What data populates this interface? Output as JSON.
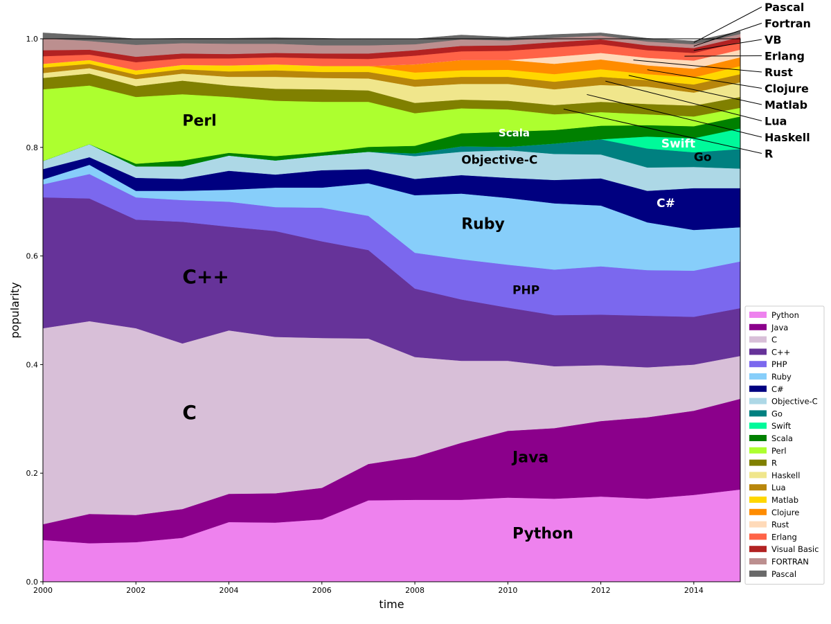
{
  "chart_data": {
    "type": "area",
    "stacked": true,
    "xlabel": "time",
    "ylabel": "popularity",
    "xlim": [
      2000,
      2015
    ],
    "ylim": [
      0,
      1.0
    ],
    "xticks": [
      "2000",
      "2002",
      "2004",
      "2006",
      "2008",
      "2010",
      "2012",
      "2014"
    ],
    "yticks": [
      "0.0",
      "0.2",
      "0.4",
      "0.6",
      "0.8",
      "1.0"
    ],
    "x": [
      2000,
      2001,
      2002,
      2003,
      2004,
      2005,
      2006,
      2007,
      2008,
      2009,
      2010,
      2011,
      2012,
      2013,
      2014,
      2015
    ],
    "legend_position": "lower-right",
    "series": [
      {
        "name": "Python",
        "color": "#ee82ee",
        "values": [
          0.077,
          0.071,
          0.073,
          0.081,
          0.11,
          0.109,
          0.115,
          0.15,
          0.151,
          0.151,
          0.155,
          0.153,
          0.157,
          0.153,
          0.16,
          0.17
        ]
      },
      {
        "name": "Java",
        "color": "#8b008b",
        "values": [
          0.029,
          0.054,
          0.05,
          0.053,
          0.052,
          0.054,
          0.058,
          0.067,
          0.079,
          0.105,
          0.123,
          0.13,
          0.139,
          0.15,
          0.155,
          0.167
        ]
      },
      {
        "name": "C",
        "color": "#d8bfd8",
        "values": [
          0.361,
          0.355,
          0.344,
          0.305,
          0.301,
          0.288,
          0.276,
          0.231,
          0.184,
          0.151,
          0.129,
          0.114,
          0.103,
          0.092,
          0.085,
          0.079
        ]
      },
      {
        "name": "C++",
        "color": "#663399",
        "values": [
          0.241,
          0.226,
          0.2,
          0.224,
          0.191,
          0.195,
          0.178,
          0.163,
          0.126,
          0.113,
          0.098,
          0.094,
          0.093,
          0.095,
          0.088,
          0.088
        ]
      },
      {
        "name": "PHP",
        "color": "#7b68ee",
        "values": [
          0.024,
          0.045,
          0.041,
          0.04,
          0.046,
          0.044,
          0.062,
          0.063,
          0.066,
          0.074,
          0.079,
          0.084,
          0.089,
          0.084,
          0.085,
          0.086
        ]
      },
      {
        "name": "Ruby",
        "color": "#87cefa",
        "values": [
          0.009,
          0.017,
          0.012,
          0.017,
          0.022,
          0.036,
          0.037,
          0.06,
          0.106,
          0.121,
          0.123,
          0.122,
          0.112,
          0.088,
          0.075,
          0.063
        ]
      },
      {
        "name": "C#",
        "color": "#000080",
        "values": [
          0.019,
          0.014,
          0.024,
          0.022,
          0.035,
          0.024,
          0.032,
          0.026,
          0.03,
          0.034,
          0.037,
          0.043,
          0.05,
          0.058,
          0.077,
          0.072
        ]
      },
      {
        "name": "Objective-C",
        "color": "#add8e6",
        "values": [
          0.015,
          0.024,
          0.021,
          0.023,
          0.028,
          0.026,
          0.027,
          0.032,
          0.042,
          0.043,
          0.051,
          0.048,
          0.044,
          0.043,
          0.039,
          0.036
        ]
      },
      {
        "name": "Go",
        "color": "#008080",
        "values": [
          0.0,
          0.0,
          0.0,
          0.0,
          0.0,
          0.0,
          0.0,
          0.0,
          0.005,
          0.01,
          0.006,
          0.019,
          0.028,
          0.035,
          0.027,
          0.036
        ]
      },
      {
        "name": "Swift",
        "color": "#00fa9a",
        "values": [
          0.0,
          0.0,
          0.0,
          0.0,
          0.0,
          0.0,
          0.0,
          0.0,
          0.0,
          0.0,
          0.0,
          0.0,
          0.0,
          0.022,
          0.026,
          0.038
        ]
      },
      {
        "name": "Scala",
        "color": "#008000",
        "values": [
          0.0,
          0.0,
          0.005,
          0.011,
          0.005,
          0.008,
          0.006,
          0.009,
          0.014,
          0.024,
          0.028,
          0.025,
          0.025,
          0.021,
          0.022,
          0.022
        ]
      },
      {
        "name": "Perl",
        "color": "#adff2f",
        "values": [
          0.132,
          0.108,
          0.123,
          0.122,
          0.103,
          0.102,
          0.093,
          0.083,
          0.06,
          0.046,
          0.041,
          0.029,
          0.025,
          0.02,
          0.018,
          0.016
        ]
      },
      {
        "name": "R",
        "color": "#808000",
        "values": [
          0.021,
          0.022,
          0.02,
          0.025,
          0.021,
          0.022,
          0.023,
          0.021,
          0.019,
          0.016,
          0.016,
          0.017,
          0.019,
          0.019,
          0.02,
          0.02
        ]
      },
      {
        "name": "Haskell",
        "color": "#f0e68c",
        "values": [
          0.009,
          0.01,
          0.013,
          0.013,
          0.016,
          0.022,
          0.021,
          0.022,
          0.03,
          0.029,
          0.031,
          0.029,
          0.031,
          0.032,
          0.024,
          0.027
        ]
      },
      {
        "name": "Lua",
        "color": "#b8860b",
        "values": [
          0.01,
          0.008,
          0.008,
          0.008,
          0.01,
          0.012,
          0.011,
          0.012,
          0.013,
          0.013,
          0.013,
          0.014,
          0.015,
          0.012,
          0.015,
          0.015
        ]
      },
      {
        "name": "Matlab",
        "color": "#ffd700",
        "values": [
          0.007,
          0.007,
          0.008,
          0.008,
          0.011,
          0.011,
          0.011,
          0.011,
          0.013,
          0.012,
          0.013,
          0.014,
          0.014,
          0.011,
          0.013,
          0.015
        ]
      },
      {
        "name": "Clojure",
        "color": "#ff8c00",
        "values": [
          0.0,
          0.0,
          0.0,
          0.0,
          0.0,
          0.0,
          0.0,
          0.0,
          0.015,
          0.019,
          0.018,
          0.019,
          0.018,
          0.016,
          0.016,
          0.016
        ]
      },
      {
        "name": "Rust",
        "color": "#ffdab9",
        "values": [
          0.0,
          0.0,
          0.0,
          0.0,
          0.0,
          0.0,
          0.0,
          0.0,
          0.0,
          0.0,
          0.0,
          0.013,
          0.012,
          0.014,
          0.015,
          0.014
        ]
      },
      {
        "name": "Erlang",
        "color": "#ff6347",
        "values": [
          0.014,
          0.01,
          0.015,
          0.012,
          0.013,
          0.013,
          0.014,
          0.013,
          0.016,
          0.016,
          0.017,
          0.017,
          0.016,
          0.014,
          0.014,
          0.014
        ]
      },
      {
        "name": "Visual Basic",
        "color": "#b22222",
        "values": [
          0.011,
          0.009,
          0.01,
          0.009,
          0.008,
          0.008,
          0.009,
          0.01,
          0.01,
          0.01,
          0.01,
          0.01,
          0.009,
          0.009,
          0.009,
          0.009
        ]
      },
      {
        "name": "FORTRAN",
        "color": "#bc8f8f",
        "values": [
          0.022,
          0.016,
          0.022,
          0.019,
          0.019,
          0.017,
          0.015,
          0.015,
          0.011,
          0.012,
          0.009,
          0.008,
          0.007,
          0.007,
          0.007,
          0.006
        ]
      },
      {
        "name": "Pascal",
        "color": "#696969",
        "values": [
          0.01,
          0.01,
          0.011,
          0.009,
          0.01,
          0.011,
          0.013,
          0.011,
          0.01,
          0.008,
          0.006,
          0.006,
          0.005,
          0.006,
          0.006,
          0.005
        ]
      }
    ],
    "area_annotations": [
      {
        "text": "Python",
        "series": "Python",
        "x": 2010.1,
        "y": 0.08,
        "size": "large"
      },
      {
        "text": "Java",
        "series": "Java",
        "x": 2010.1,
        "y": 0.22,
        "size": "large"
      },
      {
        "text": "C",
        "series": "C",
        "x": 2003.0,
        "y": 0.3,
        "size": "xlarge"
      },
      {
        "text": "C++",
        "series": "C++",
        "x": 2003.0,
        "y": 0.55,
        "size": "xlarge"
      },
      {
        "text": "PHP",
        "series": "PHP",
        "x": 2010.1,
        "y": 0.53,
        "size": "medium"
      },
      {
        "text": "Ruby",
        "series": "Ruby",
        "x": 2009.0,
        "y": 0.65,
        "size": "large"
      },
      {
        "text": "C#",
        "series": "C#",
        "x": 2013.2,
        "y": 0.69,
        "size": "medium"
      },
      {
        "text": "Objective-C",
        "series": "Objective-C",
        "x": 2009.0,
        "y": 0.77,
        "size": "medium"
      },
      {
        "text": "Go",
        "series": "Go",
        "x": 2014.0,
        "y": 0.775,
        "size": "medium"
      },
      {
        "text": "Swift",
        "series": "Swift",
        "x": 2013.3,
        "y": 0.8,
        "size": "medium"
      },
      {
        "text": "Scala",
        "series": "Scala",
        "x": 2009.8,
        "y": 0.82,
        "size": "small"
      },
      {
        "text": "Perl",
        "series": "Perl",
        "x": 2003.0,
        "y": 0.84,
        "size": "large"
      }
    ],
    "callouts": [
      {
        "text": "Pascal",
        "series": "Pascal",
        "x": 2014.0,
        "label_row": 0
      },
      {
        "text": "Fortran",
        "series": "FORTRAN",
        "x": 2014.0,
        "label_row": 1
      },
      {
        "text": "VB",
        "series": "Visual Basic",
        "x": 2014.0,
        "label_row": 2
      },
      {
        "text": "Erlang",
        "series": "Erlang",
        "x": 2013.8,
        "label_row": 3
      },
      {
        "text": "Rust",
        "series": "Rust",
        "x": 2012.7,
        "label_row": 4
      },
      {
        "text": "Clojure",
        "series": "Clojure",
        "x": 2013.0,
        "label_row": 5
      },
      {
        "text": "Matlab",
        "series": "Matlab",
        "x": 2012.6,
        "label_row": 6
      },
      {
        "text": "Lua",
        "series": "Lua",
        "x": 2012.1,
        "label_row": 7
      },
      {
        "text": "Haskell",
        "series": "Haskell",
        "x": 2011.7,
        "label_row": 8
      },
      {
        "text": "R",
        "series": "R",
        "x": 2011.2,
        "label_row": 9
      }
    ]
  }
}
